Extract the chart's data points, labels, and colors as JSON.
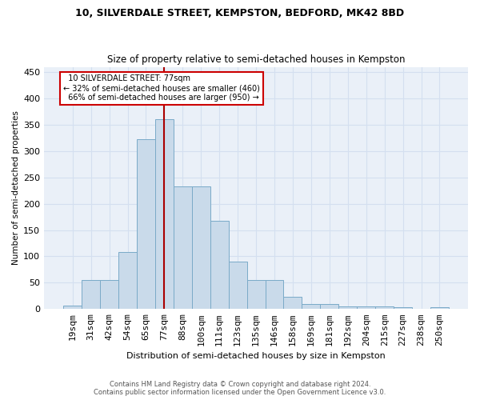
{
  "title1": "10, SILVERDALE STREET, KEMPSTON, BEDFORD, MK42 8BD",
  "title2": "Size of property relative to semi-detached houses in Kempston",
  "xlabel": "Distribution of semi-detached houses by size in Kempston",
  "ylabel": "Number of semi-detached properties",
  "bar_color": "#c9daea",
  "bar_edge_color": "#7aaac8",
  "grid_color": "#d4dff0",
  "bg_color": "#eaf0f8",
  "categories": [
    "19sqm",
    "31sqm",
    "42sqm",
    "54sqm",
    "65sqm",
    "77sqm",
    "88sqm",
    "100sqm",
    "111sqm",
    "123sqm",
    "135sqm",
    "146sqm",
    "158sqm",
    "169sqm",
    "181sqm",
    "192sqm",
    "204sqm",
    "215sqm",
    "227sqm",
    "238sqm",
    "250sqm"
  ],
  "values": [
    7,
    55,
    55,
    108,
    322,
    360,
    233,
    233,
    168,
    90,
    55,
    55,
    24,
    10,
    10,
    5,
    5,
    5,
    3,
    0,
    3
  ],
  "property_label": "10 SILVERDALE STREET: 77sqm",
  "pct_smaller": 32,
  "pct_smaller_count": 460,
  "pct_larger": 66,
  "pct_larger_count": 950,
  "vline_x_index": 5,
  "annotation_box_color": "white",
  "annotation_box_edge": "#cc0000",
  "vline_color": "#aa0000",
  "footer": "Contains HM Land Registry data © Crown copyright and database right 2024.\nContains public sector information licensed under the Open Government Licence v3.0.",
  "ylim": [
    0,
    460
  ],
  "yticks": [
    0,
    50,
    100,
    150,
    200,
    250,
    300,
    350,
    400,
    450
  ]
}
